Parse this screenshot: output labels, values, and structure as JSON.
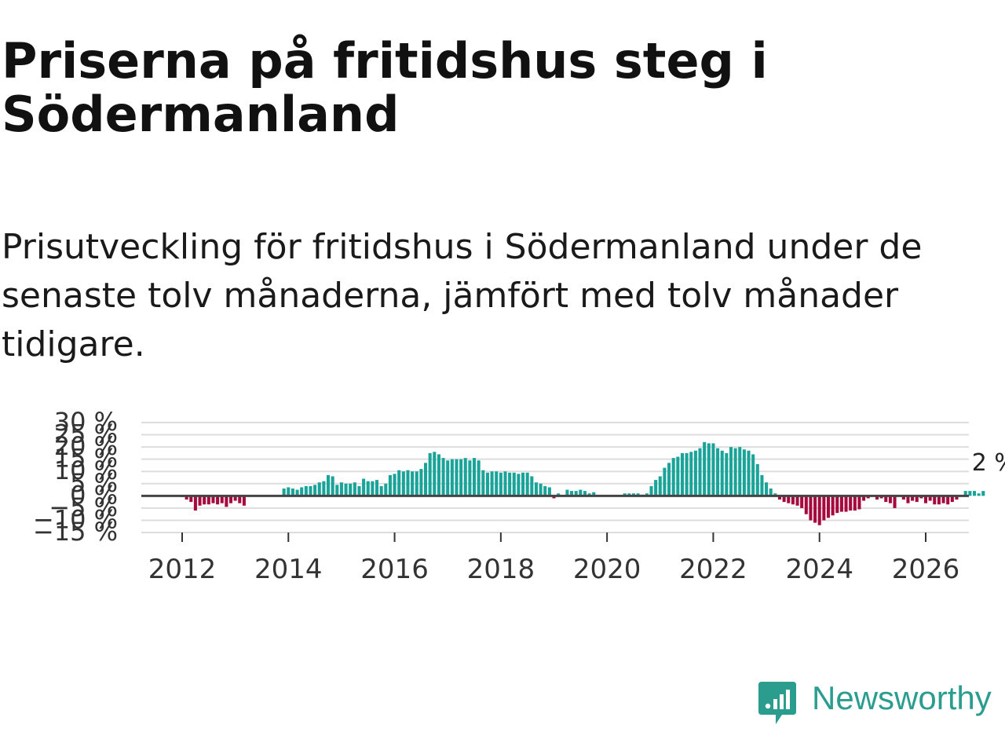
{
  "title": "Priserna på fritidshus steg i Södermanland",
  "subtitle": "Prisutveckling för fritidshus i Södermanland under de senaste tolv månaderna, jämfört med tolv månader tidigare.",
  "brand": "Newsworthy",
  "colors": {
    "positive": "#1aa398",
    "negative": "#a6093d",
    "zero_line": "#444444",
    "grid": "#dddddd",
    "brand": "#2a9d8f"
  },
  "chart_data": {
    "type": "bar",
    "title": "",
    "xlabel": "",
    "ylabel": "",
    "y_unit": "%",
    "ylim": [
      -15,
      30
    ],
    "y_ticks": [
      -15,
      -10,
      -5,
      0,
      5,
      10,
      15,
      20,
      25,
      30
    ],
    "y_tick_labels": [
      "−15 %",
      "−10 %",
      "−5 %",
      "0 %",
      "5 %",
      "10 %",
      "15 %",
      "20 %",
      "25 %",
      "30 %"
    ],
    "x_ticks": [
      2012,
      2014,
      2016,
      2018,
      2020,
      2022,
      2024,
      2026
    ],
    "x_tick_labels": [
      "2012",
      "2014",
      "2016",
      "2018",
      "2020",
      "2022",
      "2024",
      "2026"
    ],
    "x_range": [
      2011.25,
      2026.8
    ],
    "series": [
      {
        "name": "Prisutveckling",
        "start": 2011.25,
        "step_months": 1,
        "values": [
          null,
          null,
          null,
          null,
          null,
          null,
          null,
          null,
          null,
          -0.5,
          -1.5,
          -2.5,
          -6,
          -4,
          -3.5,
          -3.5,
          -3,
          -3.5,
          -3,
          -4.5,
          -3,
          -2,
          -3,
          -4,
          null,
          null,
          null,
          null,
          null,
          null,
          null,
          null,
          3,
          3.5,
          3,
          2.5,
          3.5,
          4,
          4,
          4.5,
          5.5,
          6,
          8.5,
          8,
          4.5,
          5.5,
          5,
          5,
          5.5,
          4,
          7,
          6,
          6,
          6.5,
          4,
          5,
          8.5,
          9,
          10.5,
          10,
          10.5,
          10,
          10,
          11,
          13.5,
          17.5,
          18,
          17,
          15.5,
          14.5,
          15,
          15,
          15,
          15.5,
          14.5,
          15.5,
          14.5,
          10.5,
          9.5,
          10,
          10,
          9.5,
          10,
          9.5,
          9.5,
          9,
          9.5,
          9.5,
          8,
          5.5,
          5,
          4,
          3.5,
          -1,
          1,
          null,
          2.5,
          2,
          2,
          2.5,
          2,
          1,
          1.5,
          null,
          null,
          null,
          null,
          null,
          null,
          1,
          1,
          1,
          1,
          0.5,
          1,
          4,
          6.5,
          8,
          11.5,
          13.5,
          15.5,
          16,
          17.5,
          17.5,
          18,
          18.5,
          19.5,
          22,
          21.5,
          21.5,
          19.5,
          18.5,
          17.5,
          20,
          19.5,
          20,
          19,
          18.5,
          17,
          13,
          8.5,
          5.5,
          3,
          1,
          -1.5,
          -2.5,
          -3,
          -3.5,
          -4,
          -5,
          -7.5,
          -10,
          -11,
          -12,
          -10,
          -9,
          -8,
          -7,
          -6.5,
          -6.5,
          -6,
          -6,
          -5.5,
          -2,
          -1,
          null,
          -1.5,
          -1,
          -2.5,
          -3,
          -5,
          null,
          -1.5,
          -3,
          -2,
          -2.5,
          -1,
          -3,
          -2,
          -3.5,
          -3.5,
          -3,
          -3.5,
          -2.5,
          -1.5,
          null,
          2,
          2,
          2,
          1,
          2
        ]
      }
    ],
    "annotations": [
      {
        "label": "2 %",
        "value": 2,
        "position": "last"
      }
    ]
  }
}
